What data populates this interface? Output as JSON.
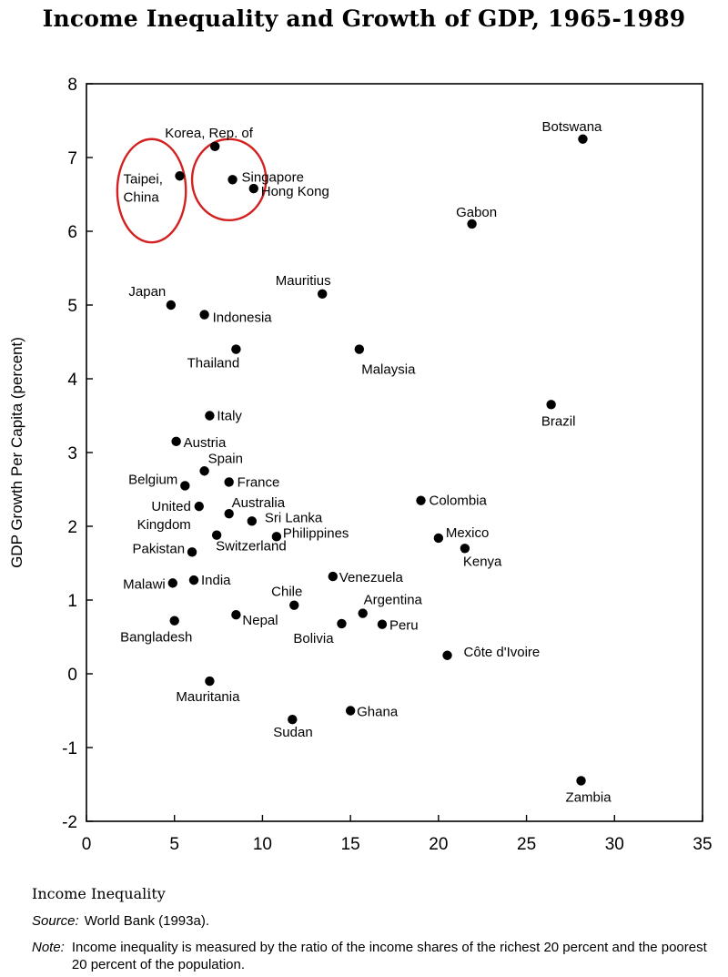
{
  "chart_data": {
    "type": "scatter",
    "title": "Income Inequality and Growth of GDP, 1965-1989",
    "xlabel": "Income Inequality",
    "ylabel": "GDP Growth Per Capita (percent)",
    "xlim": [
      0,
      35
    ],
    "ylim": [
      -2,
      8
    ],
    "xticks": [
      "0",
      "5",
      "10",
      "15",
      "20",
      "25",
      "30",
      "35"
    ],
    "yticks": [
      "8",
      "7",
      "6",
      "5",
      "4",
      "3",
      "2",
      "1",
      "0",
      "-1",
      "-2"
    ],
    "grid": false,
    "highlights": [
      {
        "label": "Taipei, China circle",
        "cx": 3.7,
        "cy": 6.55,
        "rx": 1.95,
        "ry": 0.7
      },
      {
        "label": "Singapore / Korea / Hong Kong circle",
        "cx": 8.1,
        "cy": 6.7,
        "rx": 2.1,
        "ry": 0.55
      }
    ],
    "points": [
      {
        "label": [
          "Korea, Rep. of"
        ],
        "x": 7.3,
        "y": 7.15
      },
      {
        "label": [
          "Taipei,",
          "China"
        ],
        "x": 5.3,
        "y": 6.75
      },
      {
        "label": [
          "Singapore"
        ],
        "x": 8.3,
        "y": 6.7
      },
      {
        "label": [
          "Hong Kong"
        ],
        "x": 9.5,
        "y": 6.58
      },
      {
        "label": [
          "Botswana"
        ],
        "x": 28.2,
        "y": 7.25
      },
      {
        "label": [
          "Gabon"
        ],
        "x": 21.9,
        "y": 6.1
      },
      {
        "label": [
          "Mauritius"
        ],
        "x": 13.4,
        "y": 5.15
      },
      {
        "label": [
          "Japan"
        ],
        "x": 4.8,
        "y": 5.0
      },
      {
        "label": [
          "Indonesia"
        ],
        "x": 6.7,
        "y": 4.87
      },
      {
        "label": [
          "Thailand"
        ],
        "x": 8.5,
        "y": 4.4
      },
      {
        "label": [
          "Malaysia"
        ],
        "x": 15.5,
        "y": 4.4
      },
      {
        "label": [
          "Brazil"
        ],
        "x": 26.4,
        "y": 3.65
      },
      {
        "label": [
          "Italy"
        ],
        "x": 7.0,
        "y": 3.5
      },
      {
        "label": [
          "Austria"
        ],
        "x": 5.1,
        "y": 3.15
      },
      {
        "label": [
          "Spain"
        ],
        "x": 6.7,
        "y": 2.75
      },
      {
        "label": [
          "France"
        ],
        "x": 8.1,
        "y": 2.6
      },
      {
        "label": [
          "Belgium"
        ],
        "x": 5.6,
        "y": 2.55
      },
      {
        "label": [
          "Colombia"
        ],
        "x": 19.0,
        "y": 2.35
      },
      {
        "label": [
          "United",
          "Kingdom"
        ],
        "x": 6.4,
        "y": 2.27
      },
      {
        "label": [
          "Australia"
        ],
        "x": 8.1,
        "y": 2.17
      },
      {
        "label": [
          "Sri Lanka"
        ],
        "x": 9.4,
        "y": 2.07
      },
      {
        "label": [
          "Switzerland"
        ],
        "x": 7.4,
        "y": 1.88
      },
      {
        "label": [
          "Philippines"
        ],
        "x": 10.8,
        "y": 1.86
      },
      {
        "label": [
          "Mexico"
        ],
        "x": 20.0,
        "y": 1.84
      },
      {
        "label": [
          "Kenya"
        ],
        "x": 21.5,
        "y": 1.7
      },
      {
        "label": [
          "Pakistan"
        ],
        "x": 6.0,
        "y": 1.65
      },
      {
        "label": [
          "Venezuela"
        ],
        "x": 14.0,
        "y": 1.32
      },
      {
        "label": [
          "India"
        ],
        "x": 6.1,
        "y": 1.27
      },
      {
        "label": [
          "Malawi"
        ],
        "x": 4.9,
        "y": 1.23
      },
      {
        "label": [
          "Chile"
        ],
        "x": 11.8,
        "y": 0.93
      },
      {
        "label": [
          "Argentina"
        ],
        "x": 15.7,
        "y": 0.82
      },
      {
        "label": [
          "Nepal"
        ],
        "x": 8.5,
        "y": 0.8
      },
      {
        "label": [
          "Bangladesh"
        ],
        "x": 5.0,
        "y": 0.72
      },
      {
        "label": [
          "Bolivia"
        ],
        "x": 14.5,
        "y": 0.68
      },
      {
        "label": [
          "Peru"
        ],
        "x": 16.8,
        "y": 0.67
      },
      {
        "label": [
          "Côte d'Ivoire"
        ],
        "x": 20.5,
        "y": 0.25
      },
      {
        "label": [
          "Mauritania"
        ],
        "x": 7.0,
        "y": -0.1
      },
      {
        "label": [
          "Ghana"
        ],
        "x": 15.0,
        "y": -0.5
      },
      {
        "label": [
          "Sudan"
        ],
        "x": 11.7,
        "y": -0.62
      },
      {
        "label": [
          "Zambia"
        ],
        "x": 28.1,
        "y": -1.45
      }
    ]
  },
  "footer": {
    "source_label": "Source:",
    "source_text": "World Bank (1993a).",
    "note_label": "Note:",
    "note_text": "Income inequality is measured by the ratio of the income shares of the richest 20 percent and the poorest 20 percent of the population."
  },
  "colors": {
    "highlight": "#d42020",
    "marker": "#000000"
  }
}
